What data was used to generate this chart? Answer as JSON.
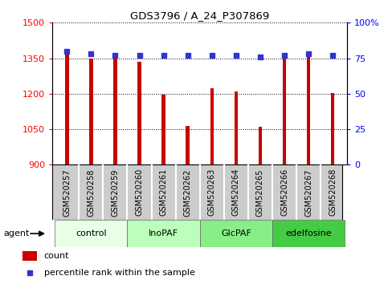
{
  "title": "GDS3796 / A_24_P307869",
  "samples": [
    "GSM520257",
    "GSM520258",
    "GSM520259",
    "GSM520260",
    "GSM520261",
    "GSM520262",
    "GSM520263",
    "GSM520264",
    "GSM520265",
    "GSM520266",
    "GSM520267",
    "GSM520268"
  ],
  "bar_values": [
    1370,
    1350,
    1350,
    1335,
    1197,
    1065,
    1222,
    1210,
    1062,
    1350,
    1365,
    1203
  ],
  "percentile_values": [
    80,
    78,
    77,
    77,
    77,
    77,
    77,
    77,
    76,
    77,
    78,
    77
  ],
  "bar_color": "#cc0000",
  "percentile_color": "#3333cc",
  "ylim_left": [
    900,
    1500
  ],
  "ylim_right": [
    0,
    100
  ],
  "yticks_left": [
    900,
    1050,
    1200,
    1350,
    1500
  ],
  "yticks_right": [
    0,
    25,
    50,
    75,
    100
  ],
  "ytick_labels_right": [
    "0",
    "25",
    "50",
    "75",
    "100%"
  ],
  "groups": [
    {
      "label": "control",
      "start": 0,
      "end": 3,
      "color": "#e8ffe8"
    },
    {
      "label": "InoPAF",
      "start": 3,
      "end": 6,
      "color": "#bbffbb"
    },
    {
      "label": "GlcPAF",
      "start": 6,
      "end": 9,
      "color": "#88ee88"
    },
    {
      "label": "edelfosine",
      "start": 9,
      "end": 12,
      "color": "#44cc44"
    }
  ],
  "agent_label": "agent",
  "legend_count_label": "count",
  "legend_pct_label": "percentile rank within the sample",
  "sample_bg_color": "#cccccc",
  "sample_border_color": "#ffffff",
  "bar_width": 0.15
}
